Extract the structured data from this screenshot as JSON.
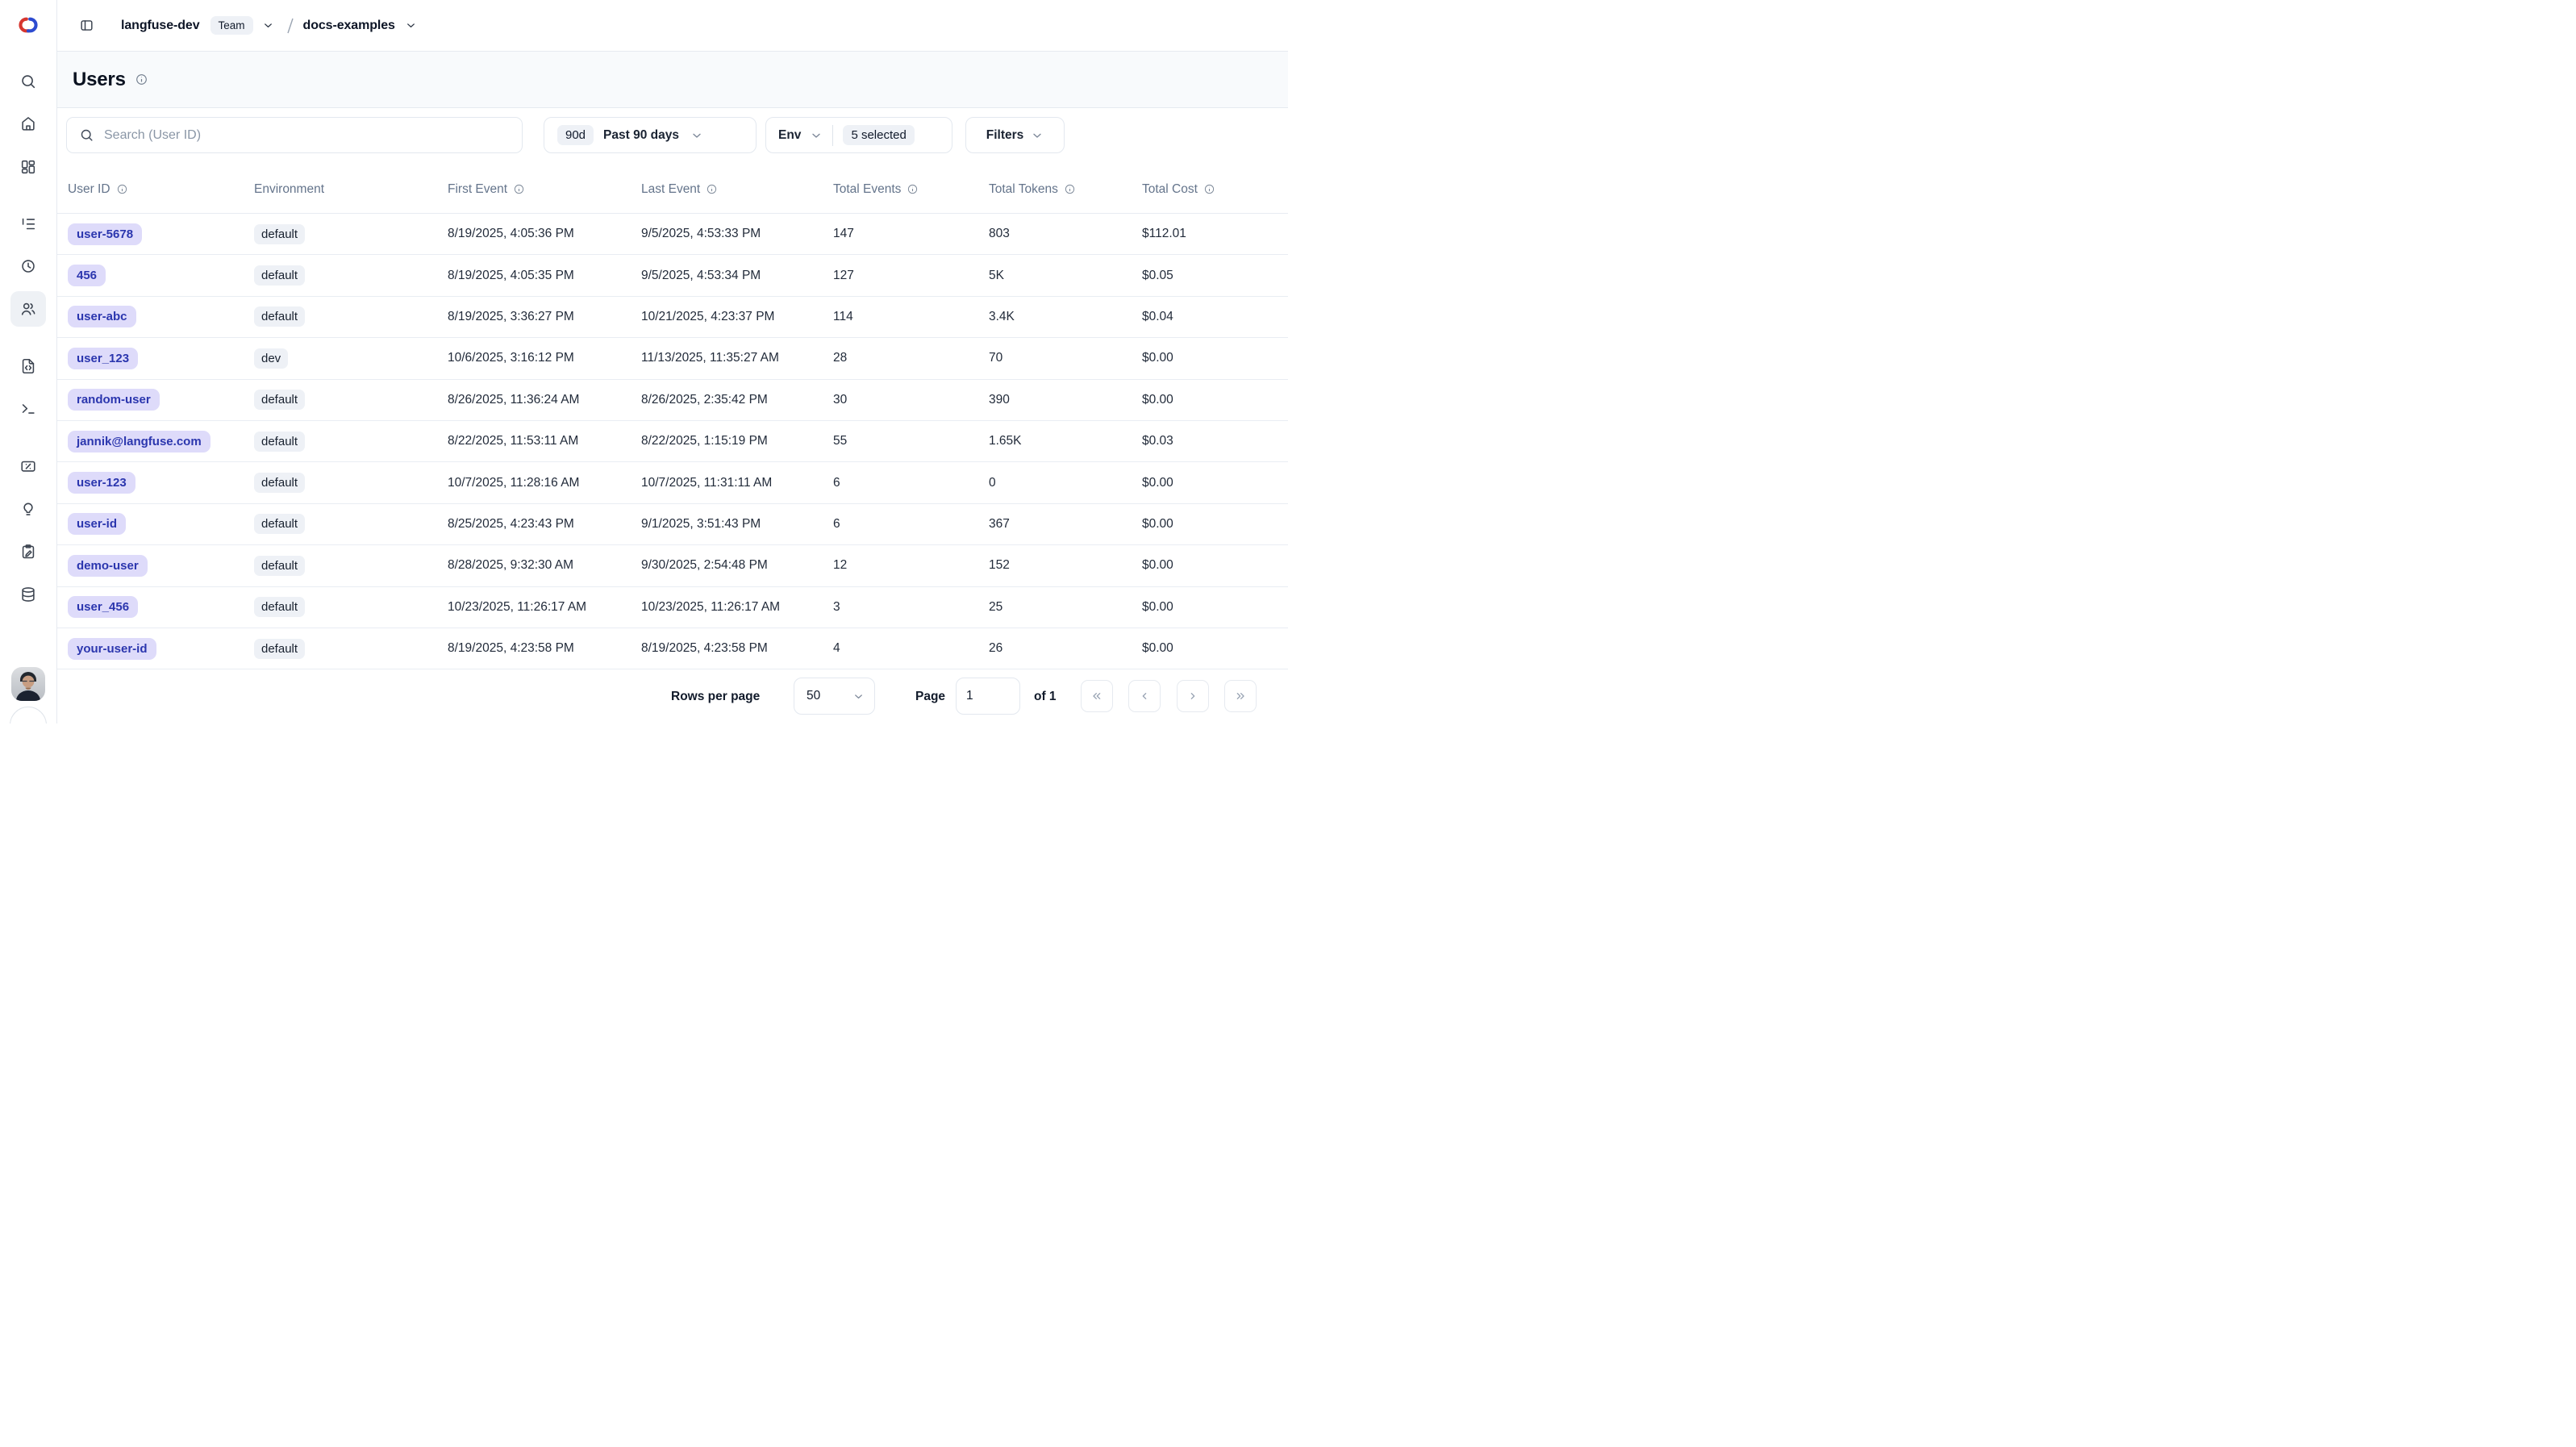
{
  "topbar": {
    "org_name": "langfuse-dev",
    "org_badge": "Team",
    "project_name": "docs-examples"
  },
  "sidebar": {
    "items": [
      {
        "icon": "search-icon",
        "active": false
      },
      {
        "icon": "home-icon",
        "active": false
      },
      {
        "icon": "dashboard-icon",
        "active": false
      },
      {
        "icon": "tracing-tree-icon",
        "active": false
      },
      {
        "icon": "sessions-clock-icon",
        "active": false
      },
      {
        "icon": "users-icon",
        "active": true
      },
      {
        "icon": "prompts-file-code-icon",
        "active": false
      },
      {
        "icon": "playground-terminal-icon",
        "active": false
      },
      {
        "icon": "evaluation-card-icon",
        "active": false
      },
      {
        "icon": "lightbulb-icon",
        "active": false
      },
      {
        "icon": "annotation-clipboard-icon",
        "active": false
      },
      {
        "icon": "datasets-database-icon",
        "active": false
      }
    ]
  },
  "page": {
    "title": "Users"
  },
  "controls": {
    "search_placeholder": "Search (User ID)",
    "date_range_badge": "90d",
    "date_range_label": "Past 90 days",
    "env_label": "Env",
    "env_selected": "5 selected",
    "filters_label": "Filters"
  },
  "table": {
    "columns": [
      {
        "label": "User ID",
        "info": true
      },
      {
        "label": "Environment",
        "info": false
      },
      {
        "label": "First Event",
        "info": true
      },
      {
        "label": "Last Event",
        "info": true
      },
      {
        "label": "Total Events",
        "info": true
      },
      {
        "label": "Total Tokens",
        "info": true
      },
      {
        "label": "Total Cost",
        "info": true
      }
    ],
    "rows": [
      {
        "user_id": "user-5678",
        "environment": "default",
        "first_event": "8/19/2025, 4:05:36 PM",
        "last_event": "9/5/2025, 4:53:33 PM",
        "total_events": "147",
        "total_tokens": "803",
        "total_cost": "$112.01"
      },
      {
        "user_id": "456",
        "environment": "default",
        "first_event": "8/19/2025, 4:05:35 PM",
        "last_event": "9/5/2025, 4:53:34 PM",
        "total_events": "127",
        "total_tokens": "5K",
        "total_cost": "$0.05"
      },
      {
        "user_id": "user-abc",
        "environment": "default",
        "first_event": "8/19/2025, 3:36:27 PM",
        "last_event": "10/21/2025, 4:23:37 PM",
        "total_events": "114",
        "total_tokens": "3.4K",
        "total_cost": "$0.04"
      },
      {
        "user_id": "user_123",
        "environment": "dev",
        "first_event": "10/6/2025, 3:16:12 PM",
        "last_event": "11/13/2025, 11:35:27 AM",
        "total_events": "28",
        "total_tokens": "70",
        "total_cost": "$0.00"
      },
      {
        "user_id": "random-user",
        "environment": "default",
        "first_event": "8/26/2025, 11:36:24 AM",
        "last_event": "8/26/2025, 2:35:42 PM",
        "total_events": "30",
        "total_tokens": "390",
        "total_cost": "$0.00"
      },
      {
        "user_id": "jannik@langfuse.com",
        "environment": "default",
        "first_event": "8/22/2025, 11:53:11 AM",
        "last_event": "8/22/2025, 1:15:19 PM",
        "total_events": "55",
        "total_tokens": "1.65K",
        "total_cost": "$0.03"
      },
      {
        "user_id": "user-123",
        "environment": "default",
        "first_event": "10/7/2025, 11:28:16 AM",
        "last_event": "10/7/2025, 11:31:11 AM",
        "total_events": "6",
        "total_tokens": "0",
        "total_cost": "$0.00"
      },
      {
        "user_id": "user-id",
        "environment": "default",
        "first_event": "8/25/2025, 4:23:43 PM",
        "last_event": "9/1/2025, 3:51:43 PM",
        "total_events": "6",
        "total_tokens": "367",
        "total_cost": "$0.00"
      },
      {
        "user_id": "demo-user",
        "environment": "default",
        "first_event": "8/28/2025, 9:32:30 AM",
        "last_event": "9/30/2025, 2:54:48 PM",
        "total_events": "12",
        "total_tokens": "152",
        "total_cost": "$0.00"
      },
      {
        "user_id": "user_456",
        "environment": "default",
        "first_event": "10/23/2025, 11:26:17 AM",
        "last_event": "10/23/2025, 11:26:17 AM",
        "total_events": "3",
        "total_tokens": "25",
        "total_cost": "$0.00"
      },
      {
        "user_id": "your-user-id",
        "environment": "default",
        "first_event": "8/19/2025, 4:23:58 PM",
        "last_event": "8/19/2025, 4:23:58 PM",
        "total_events": "4",
        "total_tokens": "26",
        "total_cost": "$0.00"
      }
    ]
  },
  "footer": {
    "rows_per_page_label": "Rows per page",
    "rows_per_page_value": "50",
    "page_label": "Page",
    "page_value": "1",
    "of_label": "of 1"
  },
  "colors": {
    "user_badge_bg": "#dedbfa",
    "user_badge_text": "#2b36ae",
    "env_badge_bg": "#eef1f6",
    "header_band_bg": "#f8fafc",
    "border": "#e6eaf0",
    "table_header_text": "#64748b",
    "logo_red": "#d6362f",
    "logo_blue": "#2d4bd0"
  }
}
